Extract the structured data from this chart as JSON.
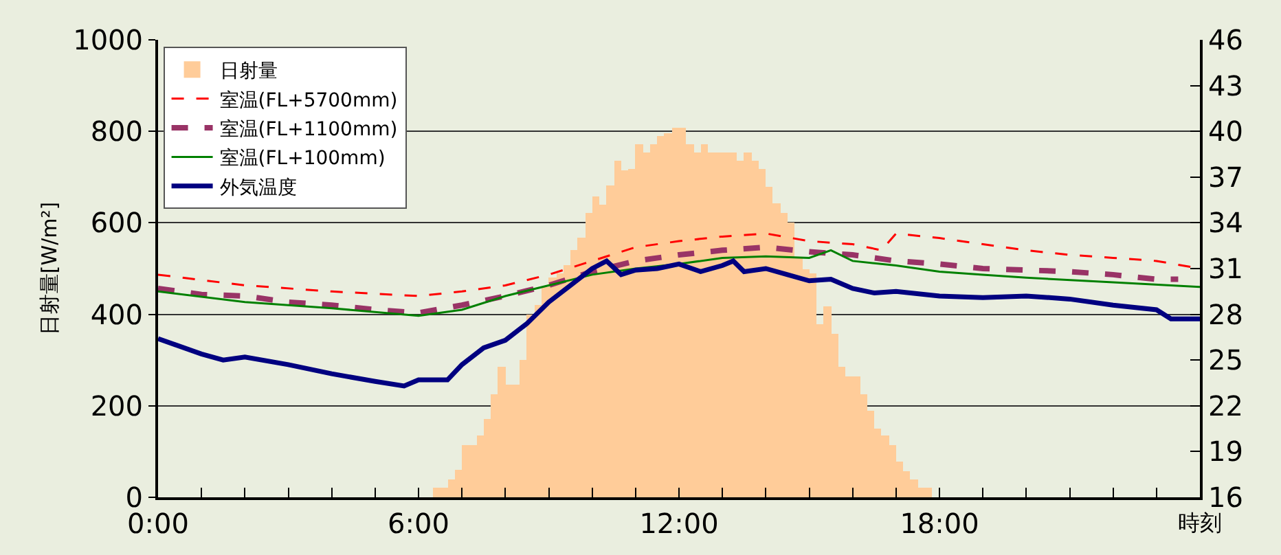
{
  "chart_data": {
    "type": "line",
    "ylabel": "日射量[W/m²]",
    "xlabel": "時刻",
    "xlim": [
      0,
      24
    ],
    "xticks": [
      {
        "value": 0,
        "label": "0:00"
      },
      {
        "value": 1,
        "label": null
      },
      {
        "value": 2,
        "label": null
      },
      {
        "value": 3,
        "label": null
      },
      {
        "value": 4,
        "label": null
      },
      {
        "value": 5,
        "label": null
      },
      {
        "value": 6,
        "label": "6:00"
      },
      {
        "value": 7,
        "label": null
      },
      {
        "value": 8,
        "label": null
      },
      {
        "value": 9,
        "label": null
      },
      {
        "value": 10,
        "label": null
      },
      {
        "value": 11,
        "label": null
      },
      {
        "value": 12,
        "label": "12:00"
      },
      {
        "value": 13,
        "label": null
      },
      {
        "value": 14,
        "label": null
      },
      {
        "value": 15,
        "label": null
      },
      {
        "value": 16,
        "label": null
      },
      {
        "value": 17,
        "label": null
      },
      {
        "value": 18,
        "label": "18:00"
      },
      {
        "value": 19,
        "label": null
      },
      {
        "value": 20,
        "label": null
      },
      {
        "value": 21,
        "label": null
      },
      {
        "value": 22,
        "label": null
      },
      {
        "value": 23,
        "label": null
      }
    ],
    "ylim": [
      0,
      1000
    ],
    "yticks": [
      0,
      200,
      400,
      600,
      800,
      1000
    ],
    "y2lim": [
      16,
      46
    ],
    "y2ticks": [
      16,
      19,
      22,
      25,
      28,
      31,
      34,
      37,
      40,
      43,
      46
    ],
    "grid": "y",
    "legend": "top left",
    "series": [
      {
        "name": "日射量",
        "type": "bar",
        "color": "#ffcc99",
        "x": [
          6.333,
          6.5,
          6.667,
          6.833,
          7,
          7.167,
          7.333,
          7.5,
          7.667,
          7.833,
          8,
          8.167,
          8.333,
          8.5,
          8.667,
          8.833,
          9,
          9.167,
          9.333,
          9.5,
          9.667,
          9.833,
          10,
          10.167,
          10.333,
          10.5,
          10.667,
          10.833,
          11,
          11.167,
          11.333,
          11.5,
          11.667,
          11.833,
          12,
          12.167,
          12.333,
          12.5,
          12.667,
          12.833,
          13,
          13.167,
          13.333,
          13.5,
          13.667,
          13.833,
          14,
          14.167,
          14.333,
          14.5,
          14.667,
          14.833,
          15,
          15.167,
          15.333,
          15.5,
          15.667,
          15.833,
          16,
          16.167,
          16.333,
          16.5,
          16.667,
          16.833,
          17,
          17.167,
          17.333,
          17.5,
          17.667
        ],
        "values": [
          21,
          21,
          39,
          60,
          114,
          114,
          135,
          171,
          225,
          285,
          246,
          246,
          300,
          400,
          420,
          460,
          480,
          490,
          507,
          540,
          567,
          622,
          658,
          640,
          682,
          736,
          715,
          718,
          772,
          754,
          772,
          790,
          796,
          808,
          808,
          772,
          754,
          772,
          754,
          754,
          754,
          754,
          736,
          754,
          736,
          718,
          679,
          643,
          622,
          601,
          526,
          500,
          490,
          378,
          417,
          357,
          285,
          264,
          264,
          225,
          189,
          150,
          135,
          114,
          78,
          57,
          39,
          21,
          21
        ]
      },
      {
        "name": "室温(FL+5700mm)",
        "axis": "y2",
        "color": "#ff0000",
        "line_style": "dashed",
        "x": [
          0,
          2,
          4,
          6,
          7,
          8,
          9,
          10,
          11,
          12,
          13,
          14,
          15,
          16,
          16.667,
          17,
          18,
          19,
          20,
          21,
          22,
          23,
          24
        ],
        "values": [
          30.6,
          29.9,
          29.5,
          29.2,
          29.5,
          29.9,
          30.6,
          31.5,
          32.4,
          32.8,
          33.1,
          33.3,
          32.8,
          32.6,
          32.2,
          33.3,
          33.0,
          32.6,
          32.2,
          31.9,
          31.7,
          31.5,
          31.0
        ]
      },
      {
        "name": "室温(FL+1100mm)",
        "axis": "y2",
        "color": "#993366",
        "line_style": "dashed",
        "x": [
          0,
          1,
          2,
          3,
          4,
          5,
          6,
          7,
          8,
          9,
          10,
          11,
          12,
          13,
          14,
          15,
          16,
          17,
          18,
          19,
          20,
          21,
          22,
          23,
          23.5
        ],
        "values": [
          29.7,
          29.3,
          29.2,
          28.8,
          28.6,
          28.3,
          28.1,
          28.6,
          29.2,
          29.9,
          30.8,
          31.5,
          31.9,
          32.2,
          32.4,
          32.1,
          31.9,
          31.5,
          31.3,
          31.0,
          30.9,
          30.8,
          30.6,
          30.3,
          30.3
        ]
      },
      {
        "name": "室温(FL+100mm)",
        "axis": "y2",
        "color": "#008000",
        "line_style": "solid",
        "x": [
          0,
          2,
          4,
          6,
          7,
          8,
          9,
          10,
          11,
          12,
          13,
          14,
          15,
          15.5,
          16,
          17,
          18,
          19,
          20,
          22,
          24
        ],
        "values": [
          29.5,
          28.8,
          28.4,
          27.9,
          28.3,
          29.2,
          29.9,
          30.6,
          31.0,
          31.3,
          31.7,
          31.8,
          31.7,
          32.2,
          31.5,
          31.2,
          30.8,
          30.6,
          30.4,
          30.1,
          29.8
        ]
      },
      {
        "name": "外気温度",
        "axis": "y2",
        "color": "#000080",
        "line_style": "solid",
        "x": [
          0,
          1,
          1.5,
          2,
          3,
          4,
          5,
          5.667,
          6,
          6.667,
          7,
          7.5,
          8,
          8.5,
          9,
          9.5,
          10,
          10.333,
          10.667,
          11,
          11.5,
          12,
          12.5,
          13,
          13.25,
          13.5,
          14,
          14.5,
          15,
          15.5,
          16,
          16.5,
          17,
          18,
          19,
          20,
          21,
          22,
          23,
          23.333,
          24
        ],
        "values": [
          26.4,
          25.4,
          25.0,
          25.2,
          24.7,
          24.1,
          23.6,
          23.3,
          23.7,
          23.7,
          24.7,
          25.8,
          26.3,
          27.4,
          28.8,
          29.9,
          31.0,
          31.5,
          30.6,
          30.9,
          31.0,
          31.3,
          30.8,
          31.2,
          31.5,
          30.8,
          31.0,
          30.6,
          30.2,
          30.3,
          29.7,
          29.4,
          29.5,
          29.2,
          29.1,
          29.2,
          29.0,
          28.6,
          28.3,
          27.7,
          27.7
        ]
      }
    ]
  }
}
